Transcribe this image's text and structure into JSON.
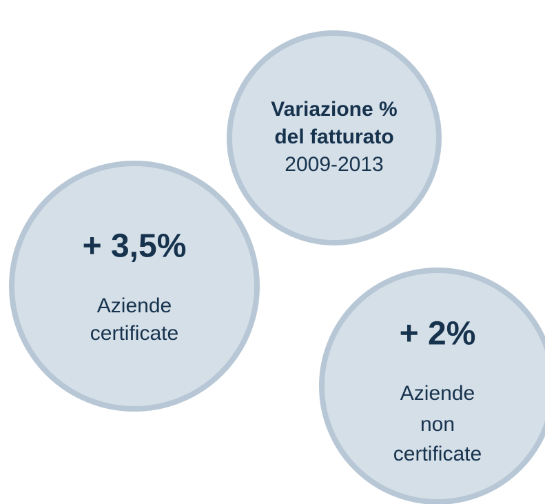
{
  "nodes": [
    {
      "title": [
        "Variazione %",
        "del fatturato"
      ],
      "subtitle": "2009-2013"
    },
    {
      "value": "+ 3,5%",
      "label": [
        "Aziende",
        "certificate"
      ]
    },
    {
      "value": "+ 2%",
      "label": [
        "Aziende",
        "non",
        "certificate"
      ]
    }
  ]
}
